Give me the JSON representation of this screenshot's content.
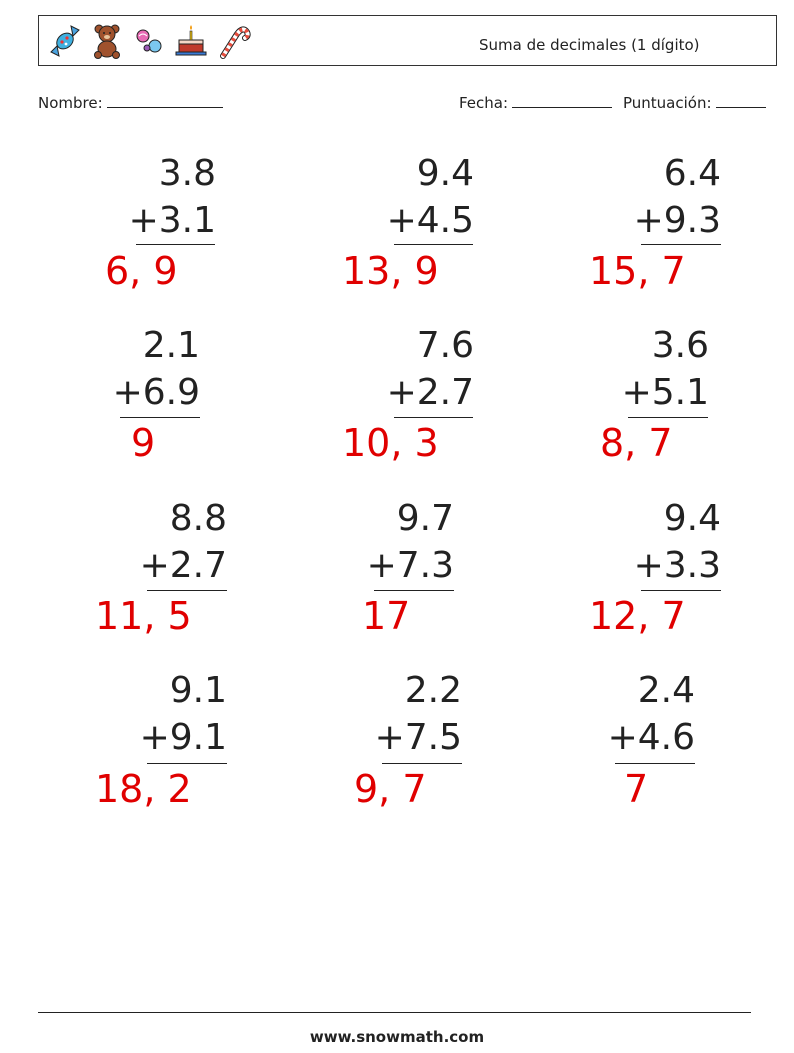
{
  "header": {
    "title": "Suma de decimales (1 dígito)",
    "icons": [
      "candy-icon",
      "teddy-bear-icon",
      "candies-icon",
      "birthday-cake-icon",
      "candy-cane-icon"
    ]
  },
  "meta": {
    "name_label": "Nombre:",
    "date_label": "Fecha:",
    "score_label": "Puntuación:"
  },
  "problems": [
    {
      "a": "3.8",
      "b": "+3.1",
      "answer": "6, 9"
    },
    {
      "a": "9.4",
      "b": "+4.5",
      "answer": "13, 9"
    },
    {
      "a": "6.4",
      "b": "+9.3",
      "answer": "15, 7"
    },
    {
      "a": "2.1",
      "b": "+6.9",
      "answer": "9"
    },
    {
      "a": "7.6",
      "b": "+2.7",
      "answer": "10, 3"
    },
    {
      "a": "3.6",
      "b": "+5.1",
      "answer": "8, 7"
    },
    {
      "a": "8.8",
      "b": "+2.7",
      "answer": "11, 5"
    },
    {
      "a": "9.7",
      "b": "+7.3",
      "answer": "17"
    },
    {
      "a": "9.4",
      "b": "+3.3",
      "answer": "12, 7"
    },
    {
      "a": "9.1",
      "b": "+9.1",
      "answer": "18, 2"
    },
    {
      "a": "2.2",
      "b": "+7.5",
      "answer": "9, 7"
    },
    {
      "a": "2.4",
      "b": "+4.6",
      "answer": "7"
    }
  ],
  "footer": {
    "text": "www.snowmath.com"
  },
  "colors": {
    "answer": "#e00000",
    "text": "#222222"
  }
}
